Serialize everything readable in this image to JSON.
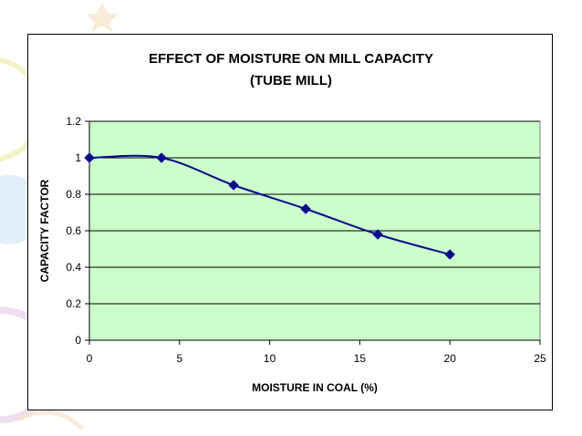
{
  "background": {
    "accent_colors": [
      "#f2ecb0",
      "#cfe3f5",
      "#ead7ef",
      "#f7e3c8"
    ]
  },
  "chart_data": {
    "type": "line",
    "title": "EFFECT OF MOISTURE ON MILL CAPACITY",
    "subtitle": "(TUBE MILL)",
    "xlabel": "MOISTURE IN COAL (%)",
    "ylabel": "CAPACITY FACTOR",
    "x": [
      0,
      4,
      8,
      12,
      16,
      20
    ],
    "series": [
      {
        "values": [
          1.0,
          1.0,
          0.85,
          0.72,
          0.58,
          0.47
        ],
        "color": "#0a0a8c",
        "marker": "diamond",
        "smoothed": true
      }
    ],
    "xlim": [
      0,
      25
    ],
    "ylim": [
      0,
      1.2
    ],
    "xticks": [
      "0",
      "5",
      "10",
      "15",
      "20",
      "25"
    ],
    "yticks": [
      "0",
      "0.2",
      "0.4",
      "0.6",
      "0.8",
      "1",
      "1.2"
    ],
    "grid": {
      "horizontal": true,
      "vertical": false
    },
    "plot_background": "#ccffcc",
    "legend": "none"
  }
}
